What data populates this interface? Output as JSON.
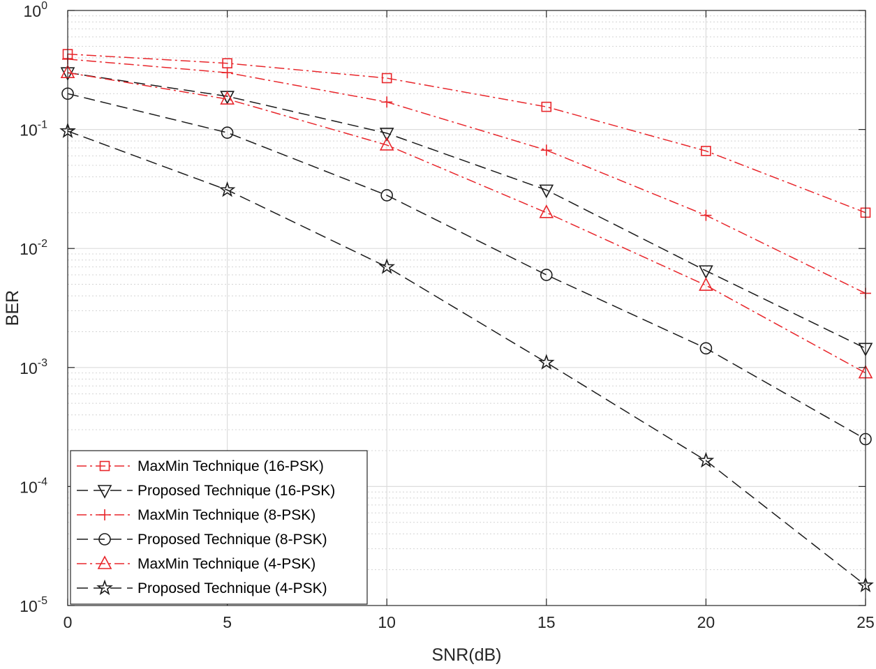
{
  "chart_data": {
    "type": "line",
    "title": "",
    "xlabel": "SNR(dB)",
    "ylabel": "BER",
    "yscale": "log",
    "xlim": [
      0,
      25
    ],
    "ylim": [
      1e-05,
      1
    ],
    "grid": true,
    "legend_location": "bottom-left",
    "x": [
      0,
      5,
      10,
      15,
      20,
      25
    ],
    "x_ticks": [
      "0",
      "5",
      "10",
      "15",
      "20",
      "25"
    ],
    "y_ticks": [
      {
        "base": "10",
        "exp": "0"
      },
      {
        "base": "10",
        "exp": "-1"
      },
      {
        "base": "10",
        "exp": "-2"
      },
      {
        "base": "10",
        "exp": "-3"
      },
      {
        "base": "10",
        "exp": "-4"
      },
      {
        "base": "10",
        "exp": "-5"
      }
    ],
    "series": [
      {
        "name": "MaxMin Technique (16-PSK)",
        "color": "#e8262b",
        "dash": "dashdot",
        "marker": "square",
        "values": [
          0.43,
          0.36,
          0.27,
          0.155,
          0.066,
          0.02
        ]
      },
      {
        "name": "Proposed Technique (16-PSK)",
        "color": "#1a1a1a",
        "dash": "dashed",
        "marker": "triangle-down",
        "values": [
          0.3,
          0.19,
          0.093,
          0.031,
          0.0065,
          0.00145
        ]
      },
      {
        "name": "MaxMin Technique (8-PSK)",
        "color": "#e8262b",
        "dash": "dashdot",
        "marker": "plus",
        "values": [
          0.39,
          0.3,
          0.17,
          0.067,
          0.019,
          0.0042
        ]
      },
      {
        "name": "Proposed Technique (8-PSK)",
        "color": "#1a1a1a",
        "dash": "dashed",
        "marker": "circle",
        "values": [
          0.2,
          0.094,
          0.028,
          0.006,
          0.00145,
          0.00025
        ]
      },
      {
        "name": "MaxMin Technique (4-PSK)",
        "color": "#e8262b",
        "dash": "dashdot",
        "marker": "triangle-up",
        "values": [
          0.3,
          0.18,
          0.074,
          0.02,
          0.0049,
          0.0009
        ]
      },
      {
        "name": "Proposed Technique (4-PSK)",
        "color": "#1a1a1a",
        "dash": "dashed",
        "marker": "star",
        "values": [
          0.097,
          0.031,
          0.007,
          0.0011,
          0.000165,
          1.48e-05
        ]
      }
    ]
  }
}
